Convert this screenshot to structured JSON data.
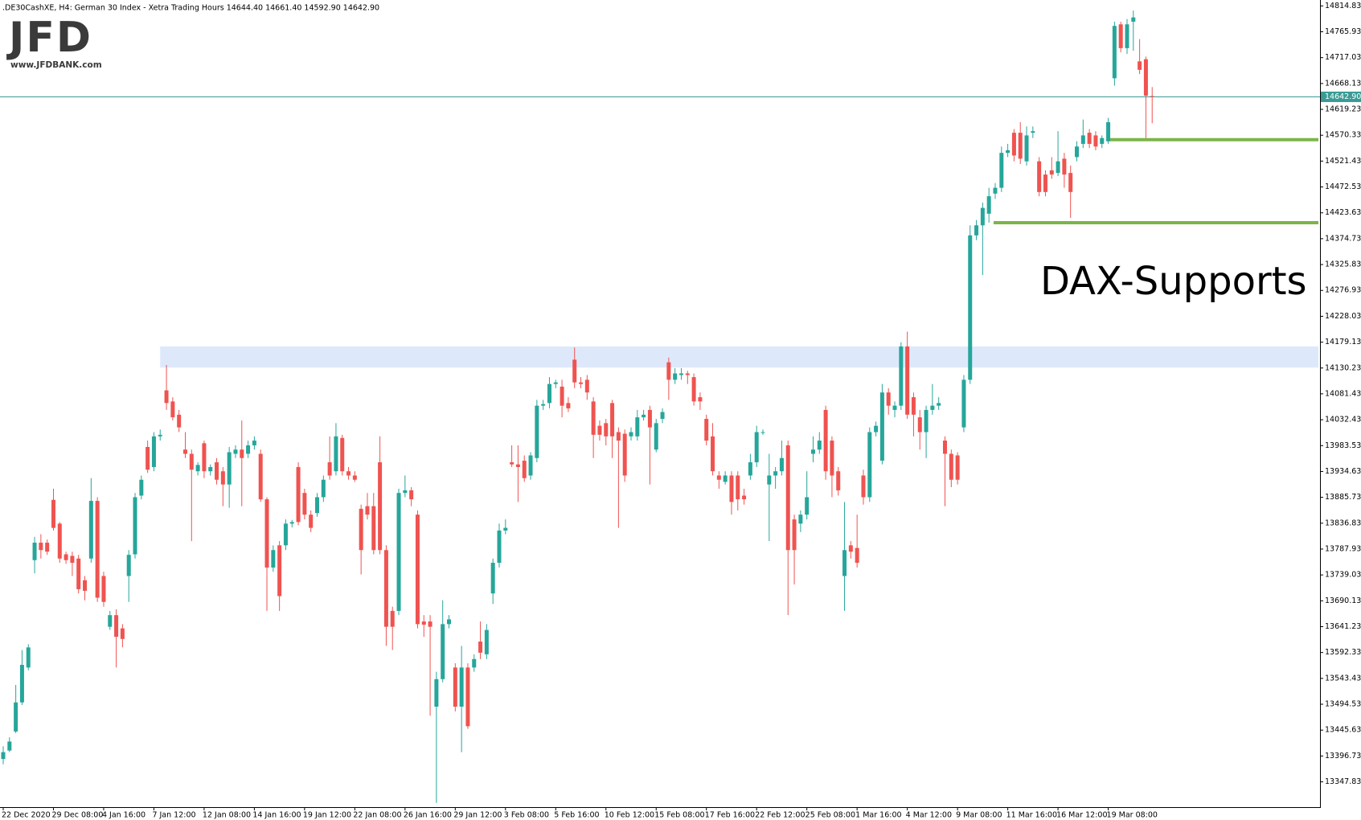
{
  "chart_data": {
    "type": "candlestick",
    "title": ".DE30CashXE, H4:  German 30 Index  - Xetra Trading Hours  14644.40 14661.40 14592.90 14642.90",
    "logo": {
      "name": "JFD",
      "url": "www.JFDBANK.com"
    },
    "annotation": "DAX-Supports",
    "up_color": "#26a69a",
    "down_color": "#ef5350",
    "categories": [
      "22 Dec 2020",
      null,
      null,
      null,
      null,
      null,
      null,
      null,
      "29 Dec 08:00",
      null,
      null,
      null,
      null,
      null,
      null,
      null,
      "4 Jan 16:00",
      null,
      null,
      null,
      null,
      null,
      null,
      null,
      "7 Jan 12:00",
      null,
      null,
      null,
      null,
      null,
      null,
      null,
      "12 Jan 08:00",
      null,
      null,
      null,
      null,
      null,
      null,
      null,
      "14 Jan 16:00",
      null,
      null,
      null,
      null,
      null,
      null,
      null,
      "19 Jan 12:00",
      null,
      null,
      null,
      null,
      null,
      null,
      null,
      "22 Jan 08:00",
      null,
      null,
      null,
      null,
      null,
      null,
      null,
      "26 Jan 16:00",
      null,
      null,
      null,
      null,
      null,
      null,
      null,
      "29 Jan 12:00",
      null,
      null,
      null,
      null,
      null,
      null,
      null,
      "3 Feb 08:00",
      null,
      null,
      null,
      null,
      null,
      null,
      null,
      "5 Feb 16:00",
      null,
      null,
      null,
      null,
      null,
      null,
      null,
      "10 Feb 12:00",
      null,
      null,
      null,
      null,
      null,
      null,
      null,
      "15 Feb 08:00",
      null,
      null,
      null,
      null,
      null,
      null,
      null,
      "17 Feb 16:00",
      null,
      null,
      null,
      null,
      null,
      null,
      null,
      "22 Feb 12:00",
      null,
      null,
      null,
      null,
      null,
      null,
      null,
      "25 Feb 08:00",
      null,
      null,
      null,
      null,
      null,
      null,
      null,
      "1 Mar 16:00",
      null,
      null,
      null,
      null,
      null,
      null,
      null,
      "4 Mar 12:00",
      null,
      null,
      null,
      null,
      null,
      null,
      null,
      "9 Mar 08:00",
      null,
      null,
      null,
      null,
      null,
      null,
      null,
      "11 Mar 16:00",
      null,
      null,
      null,
      null,
      null,
      null,
      null,
      "16 Mar 12:00",
      null,
      null,
      null,
      null,
      null,
      null,
      null,
      "19 Mar 08:00",
      null,
      null,
      null,
      null,
      null,
      null,
      null
    ],
    "ohlc": [
      [
        13391,
        13415,
        13381,
        13404
      ],
      [
        13407,
        13432,
        13404,
        13424
      ],
      [
        13443,
        13531,
        13440,
        13498
      ],
      [
        13498,
        13597,
        13493,
        13569
      ],
      [
        13564,
        13608,
        13559,
        13602
      ],
      [
        13767,
        13811,
        13742,
        13800
      ],
      [
        13800,
        13816,
        13770,
        13786
      ],
      [
        13800,
        13806,
        13777,
        13783
      ],
      [
        13881,
        13902,
        13823,
        13828
      ],
      [
        13836,
        13839,
        13762,
        13770
      ],
      [
        13778,
        13783,
        13760,
        13767
      ],
      [
        13775,
        13783,
        13737,
        13762
      ],
      [
        13770,
        13777,
        13704,
        13712
      ],
      [
        13729,
        13737,
        13691,
        13709
      ],
      [
        13770,
        13922,
        13762,
        13879
      ],
      [
        13879,
        13886,
        13688,
        13696
      ],
      [
        13737,
        13745,
        13679,
        13688
      ],
      [
        13641,
        13671,
        13635,
        13663
      ],
      [
        13663,
        13674,
        13564,
        13622
      ],
      [
        13638,
        13646,
        13602,
        13618
      ],
      [
        13737,
        13786,
        13688,
        13777
      ],
      [
        13778,
        13894,
        13770,
        13886
      ],
      [
        13889,
        13927,
        13882,
        13919
      ],
      [
        13981,
        13993,
        13932,
        13938
      ],
      [
        13943,
        14009,
        13935,
        14001
      ],
      [
        14001,
        14014,
        13993,
        14004
      ],
      [
        14088,
        14136,
        14051,
        14064
      ],
      [
        14067,
        14075,
        14031,
        14037
      ],
      [
        14042,
        14051,
        14009,
        14018
      ],
      [
        13976,
        14009,
        13960,
        13968
      ],
      [
        13968,
        13976,
        13803,
        13938
      ],
      [
        13935,
        13952,
        13927,
        13947
      ],
      [
        13988,
        13993,
        13922,
        13935
      ],
      [
        13935,
        13948,
        13927,
        13943
      ],
      [
        13952,
        13960,
        13910,
        13919
      ],
      [
        13935,
        13943,
        13869,
        13910
      ],
      [
        13910,
        13981,
        13866,
        13971
      ],
      [
        13968,
        13984,
        13960,
        13976
      ],
      [
        13976,
        14031,
        13869,
        13960
      ],
      [
        13968,
        13993,
        13960,
        13984
      ],
      [
        13984,
        14001,
        13976,
        13993
      ],
      [
        13968,
        13976,
        13877,
        13882
      ],
      [
        13882,
        13886,
        13671,
        13753
      ],
      [
        13753,
        13795,
        13745,
        13786
      ],
      [
        13795,
        13803,
        13671,
        13699
      ],
      [
        13795,
        13844,
        13786,
        13836
      ],
      [
        13836,
        13843,
        13829,
        13839
      ],
      [
        13943,
        13952,
        13833,
        13839
      ],
      [
        13894,
        13902,
        13844,
        13853
      ],
      [
        13853,
        13861,
        13820,
        13828
      ],
      [
        13856,
        13894,
        13849,
        13886
      ],
      [
        13886,
        13927,
        13877,
        13919
      ],
      [
        13952,
        14001,
        13919,
        13927
      ],
      [
        13935,
        14026,
        13927,
        14001
      ],
      [
        13998,
        14004,
        13927,
        13935
      ],
      [
        13935,
        13943,
        13919,
        13927
      ],
      [
        13927,
        13935,
        13915,
        13919
      ],
      [
        13864,
        13872,
        13740,
        13786
      ],
      [
        13869,
        13894,
        13844,
        13853
      ],
      [
        13869,
        13894,
        13778,
        13786
      ],
      [
        13952,
        14001,
        13778,
        13786
      ],
      [
        13786,
        13795,
        13605,
        13641
      ],
      [
        13671,
        13679,
        13597,
        13641
      ],
      [
        13671,
        13902,
        13663,
        13894
      ],
      [
        13894,
        13927,
        13886,
        13899
      ],
      [
        13899,
        13905,
        13869,
        13882
      ],
      [
        13853,
        13861,
        13638,
        13646
      ],
      [
        13651,
        13663,
        13622,
        13645
      ],
      [
        13651,
        13663,
        13473,
        13641
      ],
      [
        13490,
        13556,
        13308,
        13542
      ],
      [
        13542,
        13691,
        13536,
        13646
      ],
      [
        13646,
        13663,
        13638,
        13655
      ],
      [
        13564,
        13572,
        13481,
        13490
      ],
      [
        13490,
        13605,
        13404,
        13564
      ],
      [
        13564,
        13572,
        13448,
        13453
      ],
      [
        13564,
        13589,
        13556,
        13580
      ],
      [
        13613,
        13651,
        13580,
        13592
      ],
      [
        13589,
        13646,
        13580,
        13635
      ],
      [
        13704,
        13770,
        13684,
        13762
      ],
      [
        13762,
        13836,
        13753,
        13823
      ],
      [
        13823,
        13844,
        13816,
        13828
      ],
      [
        13952,
        13984,
        13943,
        13948
      ],
      [
        13948,
        13984,
        13877,
        13943
      ],
      [
        13955,
        13965,
        13915,
        13922
      ],
      [
        13927,
        13971,
        13919,
        13965
      ],
      [
        13960,
        14070,
        13952,
        14059
      ],
      [
        14059,
        14070,
        14051,
        14062
      ],
      [
        14064,
        14113,
        14054,
        14100
      ],
      [
        14100,
        14108,
        14092,
        14103
      ],
      [
        14095,
        14108,
        14037,
        14059
      ],
      [
        14064,
        14075,
        14047,
        14054
      ],
      [
        14146,
        14169,
        14092,
        14103
      ],
      [
        14103,
        14113,
        14092,
        14100
      ],
      [
        14108,
        14117,
        14070,
        14084
      ],
      [
        14067,
        14075,
        13960,
        14004
      ],
      [
        14021,
        14031,
        13993,
        14004
      ],
      [
        14026,
        14034,
        13984,
        14001
      ],
      [
        14064,
        14070,
        13960,
        14001
      ],
      [
        14009,
        14018,
        13828,
        13993
      ],
      [
        14006,
        14014,
        13915,
        13927
      ],
      [
        14001,
        14018,
        13993,
        14009
      ],
      [
        14001,
        14051,
        13993,
        14037
      ],
      [
        14037,
        14051,
        14031,
        14042
      ],
      [
        14051,
        14059,
        13910,
        14018
      ],
      [
        13976,
        14034,
        13971,
        14026
      ],
      [
        14034,
        14054,
        14026,
        14047
      ],
      [
        14141,
        14150,
        14070,
        14108
      ],
      [
        14108,
        14130,
        14100,
        14120
      ],
      [
        14117,
        14130,
        14108,
        14120
      ],
      [
        14120,
        14125,
        14100,
        14117
      ],
      [
        14113,
        14120,
        14059,
        14067
      ],
      [
        14075,
        14084,
        14051,
        14067
      ],
      [
        14034,
        14042,
        13984,
        13993
      ],
      [
        14001,
        14026,
        13927,
        13935
      ],
      [
        13927,
        13935,
        13902,
        13919
      ],
      [
        13915,
        13935,
        13910,
        13927
      ],
      [
        13927,
        13935,
        13853,
        13877
      ],
      [
        13927,
        13935,
        13861,
        13882
      ],
      [
        13889,
        13902,
        13872,
        13882
      ],
      [
        13927,
        13968,
        13919,
        13952
      ],
      [
        13952,
        14021,
        13943,
        14009
      ],
      [
        14008,
        14014,
        14004,
        14009
      ],
      [
        13910,
        13968,
        13803,
        13927
      ],
      [
        13927,
        13943,
        13902,
        13935
      ],
      [
        13935,
        13993,
        13927,
        13960
      ],
      [
        13984,
        13993,
        13663,
        13786
      ],
      [
        13844,
        13853,
        13721,
        13786
      ],
      [
        13836,
        13861,
        13820,
        13853
      ],
      [
        13853,
        13935,
        13844,
        13886
      ],
      [
        13968,
        14001,
        13952,
        13976
      ],
      [
        13976,
        14009,
        13968,
        13993
      ],
      [
        14051,
        14059,
        13919,
        13935
      ],
      [
        13993,
        14001,
        13886,
        13927
      ],
      [
        13935,
        13943,
        13889,
        13899
      ],
      [
        13737,
        13877,
        13671,
        13786
      ],
      [
        13795,
        13803,
        13770,
        13783
      ],
      [
        13790,
        13853,
        13753,
        13762
      ],
      [
        13927,
        13938,
        13872,
        13886
      ],
      [
        13886,
        14018,
        13877,
        14009
      ],
      [
        14009,
        14029,
        14001,
        14021
      ],
      [
        13955,
        14100,
        13948,
        14084
      ],
      [
        14084,
        14092,
        14042,
        14059
      ],
      [
        14051,
        14067,
        14037,
        14059
      ],
      [
        14059,
        14179,
        14051,
        14171
      ],
      [
        14171,
        14199,
        14034,
        14042
      ],
      [
        14075,
        14084,
        14001,
        14042
      ],
      [
        14037,
        14051,
        13976,
        14009
      ],
      [
        14009,
        14059,
        13960,
        14051
      ],
      [
        14051,
        14100,
        14042,
        14059
      ],
      [
        14059,
        14075,
        14051,
        14064
      ],
      [
        13993,
        14001,
        13869,
        13968
      ],
      [
        13968,
        13976,
        13905,
        13919
      ],
      [
        13965,
        13971,
        13910,
        13919
      ],
      [
        14018,
        14117,
        14009,
        14108
      ],
      [
        14108,
        14400,
        14100,
        14381
      ],
      [
        14381,
        14410,
        14372,
        14400
      ],
      [
        14400,
        14443,
        14306,
        14433
      ],
      [
        14422,
        14471,
        14405,
        14455
      ],
      [
        14460,
        14480,
        14450,
        14471
      ],
      [
        14471,
        14549,
        14463,
        14537
      ],
      [
        14537,
        14554,
        14529,
        14542
      ],
      [
        14575,
        14582,
        14521,
        14532
      ],
      [
        14575,
        14595,
        14516,
        14526
      ],
      [
        14521,
        14587,
        14513,
        14570
      ],
      [
        14575,
        14587,
        14565,
        14578
      ],
      [
        14521,
        14529,
        14455,
        14463
      ],
      [
        14496,
        14504,
        14455,
        14463
      ],
      [
        14504,
        14529,
        14488,
        14496
      ],
      [
        14499,
        14578,
        14493,
        14521
      ],
      [
        14526,
        14537,
        14471,
        14496
      ],
      [
        14499,
        14513,
        14414,
        14463
      ],
      [
        14529,
        14559,
        14521,
        14549
      ],
      [
        14554,
        14600,
        14546,
        14570
      ],
      [
        14575,
        14582,
        14546,
        14554
      ],
      [
        14570,
        14578,
        14542,
        14549
      ],
      [
        14554,
        14570,
        14546,
        14565
      ],
      [
        14559,
        14603,
        14554,
        14595
      ],
      [
        14678,
        14785,
        14664,
        14777
      ],
      [
        14780,
        14785,
        14727,
        14735
      ],
      [
        14735,
        14790,
        14724,
        14780
      ],
      [
        14785,
        14806,
        14730,
        14793
      ],
      [
        14710,
        14752,
        14686,
        14694
      ],
      [
        14714,
        14719,
        14565,
        14645
      ],
      [
        14644.4,
        14661.4,
        14592.9,
        14642.9
      ]
    ],
    "current_price": {
      "value": 14642.9,
      "label": "14642.90"
    },
    "current_price_color": "#3a9b96",
    "support_levels": [
      14562,
      14405
    ],
    "support_color": "#7ab648",
    "resistance_zone": [
      14131,
      14171
    ],
    "zone_color": "#dde9fb",
    "ylim": [
      13300,
      14826
    ],
    "yticks": [
      14814.83,
      14765.93,
      14717.03,
      14668.13,
      14619.23,
      14570.33,
      14521.43,
      14472.53,
      14423.63,
      14374.73,
      14325.83,
      14276.93,
      14228.03,
      14179.13,
      14130.23,
      14081.43,
      14032.43,
      13983.53,
      13934.63,
      13885.73,
      13836.83,
      13787.93,
      13739.03,
      13690.13,
      13641.23,
      13592.33,
      13543.43,
      13494.53,
      13445.63,
      13396.73,
      13347.83
    ],
    "grid": false
  }
}
